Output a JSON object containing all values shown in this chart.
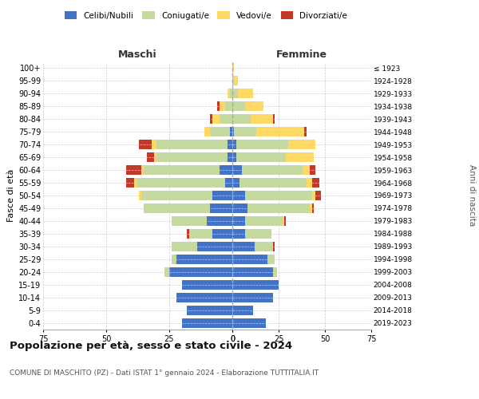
{
  "age_groups": [
    "0-4",
    "5-9",
    "10-14",
    "15-19",
    "20-24",
    "25-29",
    "30-34",
    "35-39",
    "40-44",
    "45-49",
    "50-54",
    "55-59",
    "60-64",
    "65-69",
    "70-74",
    "75-79",
    "80-84",
    "85-89",
    "90-94",
    "95-99",
    "100+"
  ],
  "birth_years": [
    "2019-2023",
    "2014-2018",
    "2009-2013",
    "2004-2008",
    "1999-2003",
    "1994-1998",
    "1989-1993",
    "1984-1988",
    "1979-1983",
    "1974-1978",
    "1969-1973",
    "1964-1968",
    "1959-1963",
    "1954-1958",
    "1949-1953",
    "1944-1948",
    "1939-1943",
    "1934-1938",
    "1929-1933",
    "1924-1928",
    "≤ 1923"
  ],
  "colors": {
    "celibe": "#4472c4",
    "coniugato": "#c5d9a0",
    "vedovo": "#ffd966",
    "divorziato": "#c0392b"
  },
  "maschi": {
    "celibe": [
      20,
      18,
      22,
      20,
      25,
      22,
      14,
      8,
      10,
      9,
      8,
      3,
      5,
      2,
      2,
      1,
      0,
      0,
      0,
      0,
      0
    ],
    "coniugato": [
      0,
      0,
      0,
      0,
      2,
      2,
      10,
      9,
      14,
      26,
      28,
      35,
      30,
      28,
      28,
      8,
      5,
      3,
      1,
      0,
      0
    ],
    "vedovo": [
      0,
      0,
      0,
      0,
      0,
      0,
      0,
      0,
      0,
      0,
      1,
      1,
      1,
      1,
      2,
      2,
      3,
      2,
      1,
      0,
      0
    ],
    "divorziato": [
      0,
      0,
      0,
      0,
      0,
      0,
      0,
      1,
      0,
      0,
      0,
      3,
      6,
      3,
      5,
      0,
      1,
      1,
      0,
      0,
      0
    ]
  },
  "femmine": {
    "celibe": [
      18,
      11,
      22,
      25,
      22,
      19,
      12,
      7,
      7,
      8,
      7,
      4,
      5,
      2,
      2,
      1,
      0,
      0,
      0,
      0,
      0
    ],
    "coniugato": [
      0,
      0,
      0,
      0,
      2,
      4,
      10,
      14,
      20,
      34,
      36,
      36,
      33,
      27,
      28,
      12,
      10,
      7,
      3,
      1,
      0
    ],
    "vedovo": [
      0,
      0,
      0,
      0,
      0,
      0,
      0,
      0,
      1,
      1,
      2,
      3,
      4,
      15,
      15,
      26,
      12,
      10,
      8,
      2,
      1
    ],
    "divorziato": [
      0,
      0,
      0,
      0,
      0,
      0,
      1,
      0,
      1,
      1,
      3,
      4,
      3,
      0,
      0,
      1,
      1,
      0,
      0,
      0,
      0
    ]
  },
  "xlim": 75,
  "title": "Popolazione per età, sesso e stato civile - 2024",
  "subtitle": "COMUNE DI MASCHITO (PZ) - Dati ISTAT 1° gennaio 2024 - Elaborazione TUTTITALIA.IT",
  "ylabel_left": "Fasce di età",
  "ylabel_right": "Anni di nascita",
  "label_maschi": "Maschi",
  "label_femmine": "Femmine",
  "legend_labels": [
    "Celibi/Nubili",
    "Coniugati/e",
    "Vedovi/e",
    "Divorziati/e"
  ],
  "background_color": "#ffffff",
  "grid_color": "#cccccc"
}
